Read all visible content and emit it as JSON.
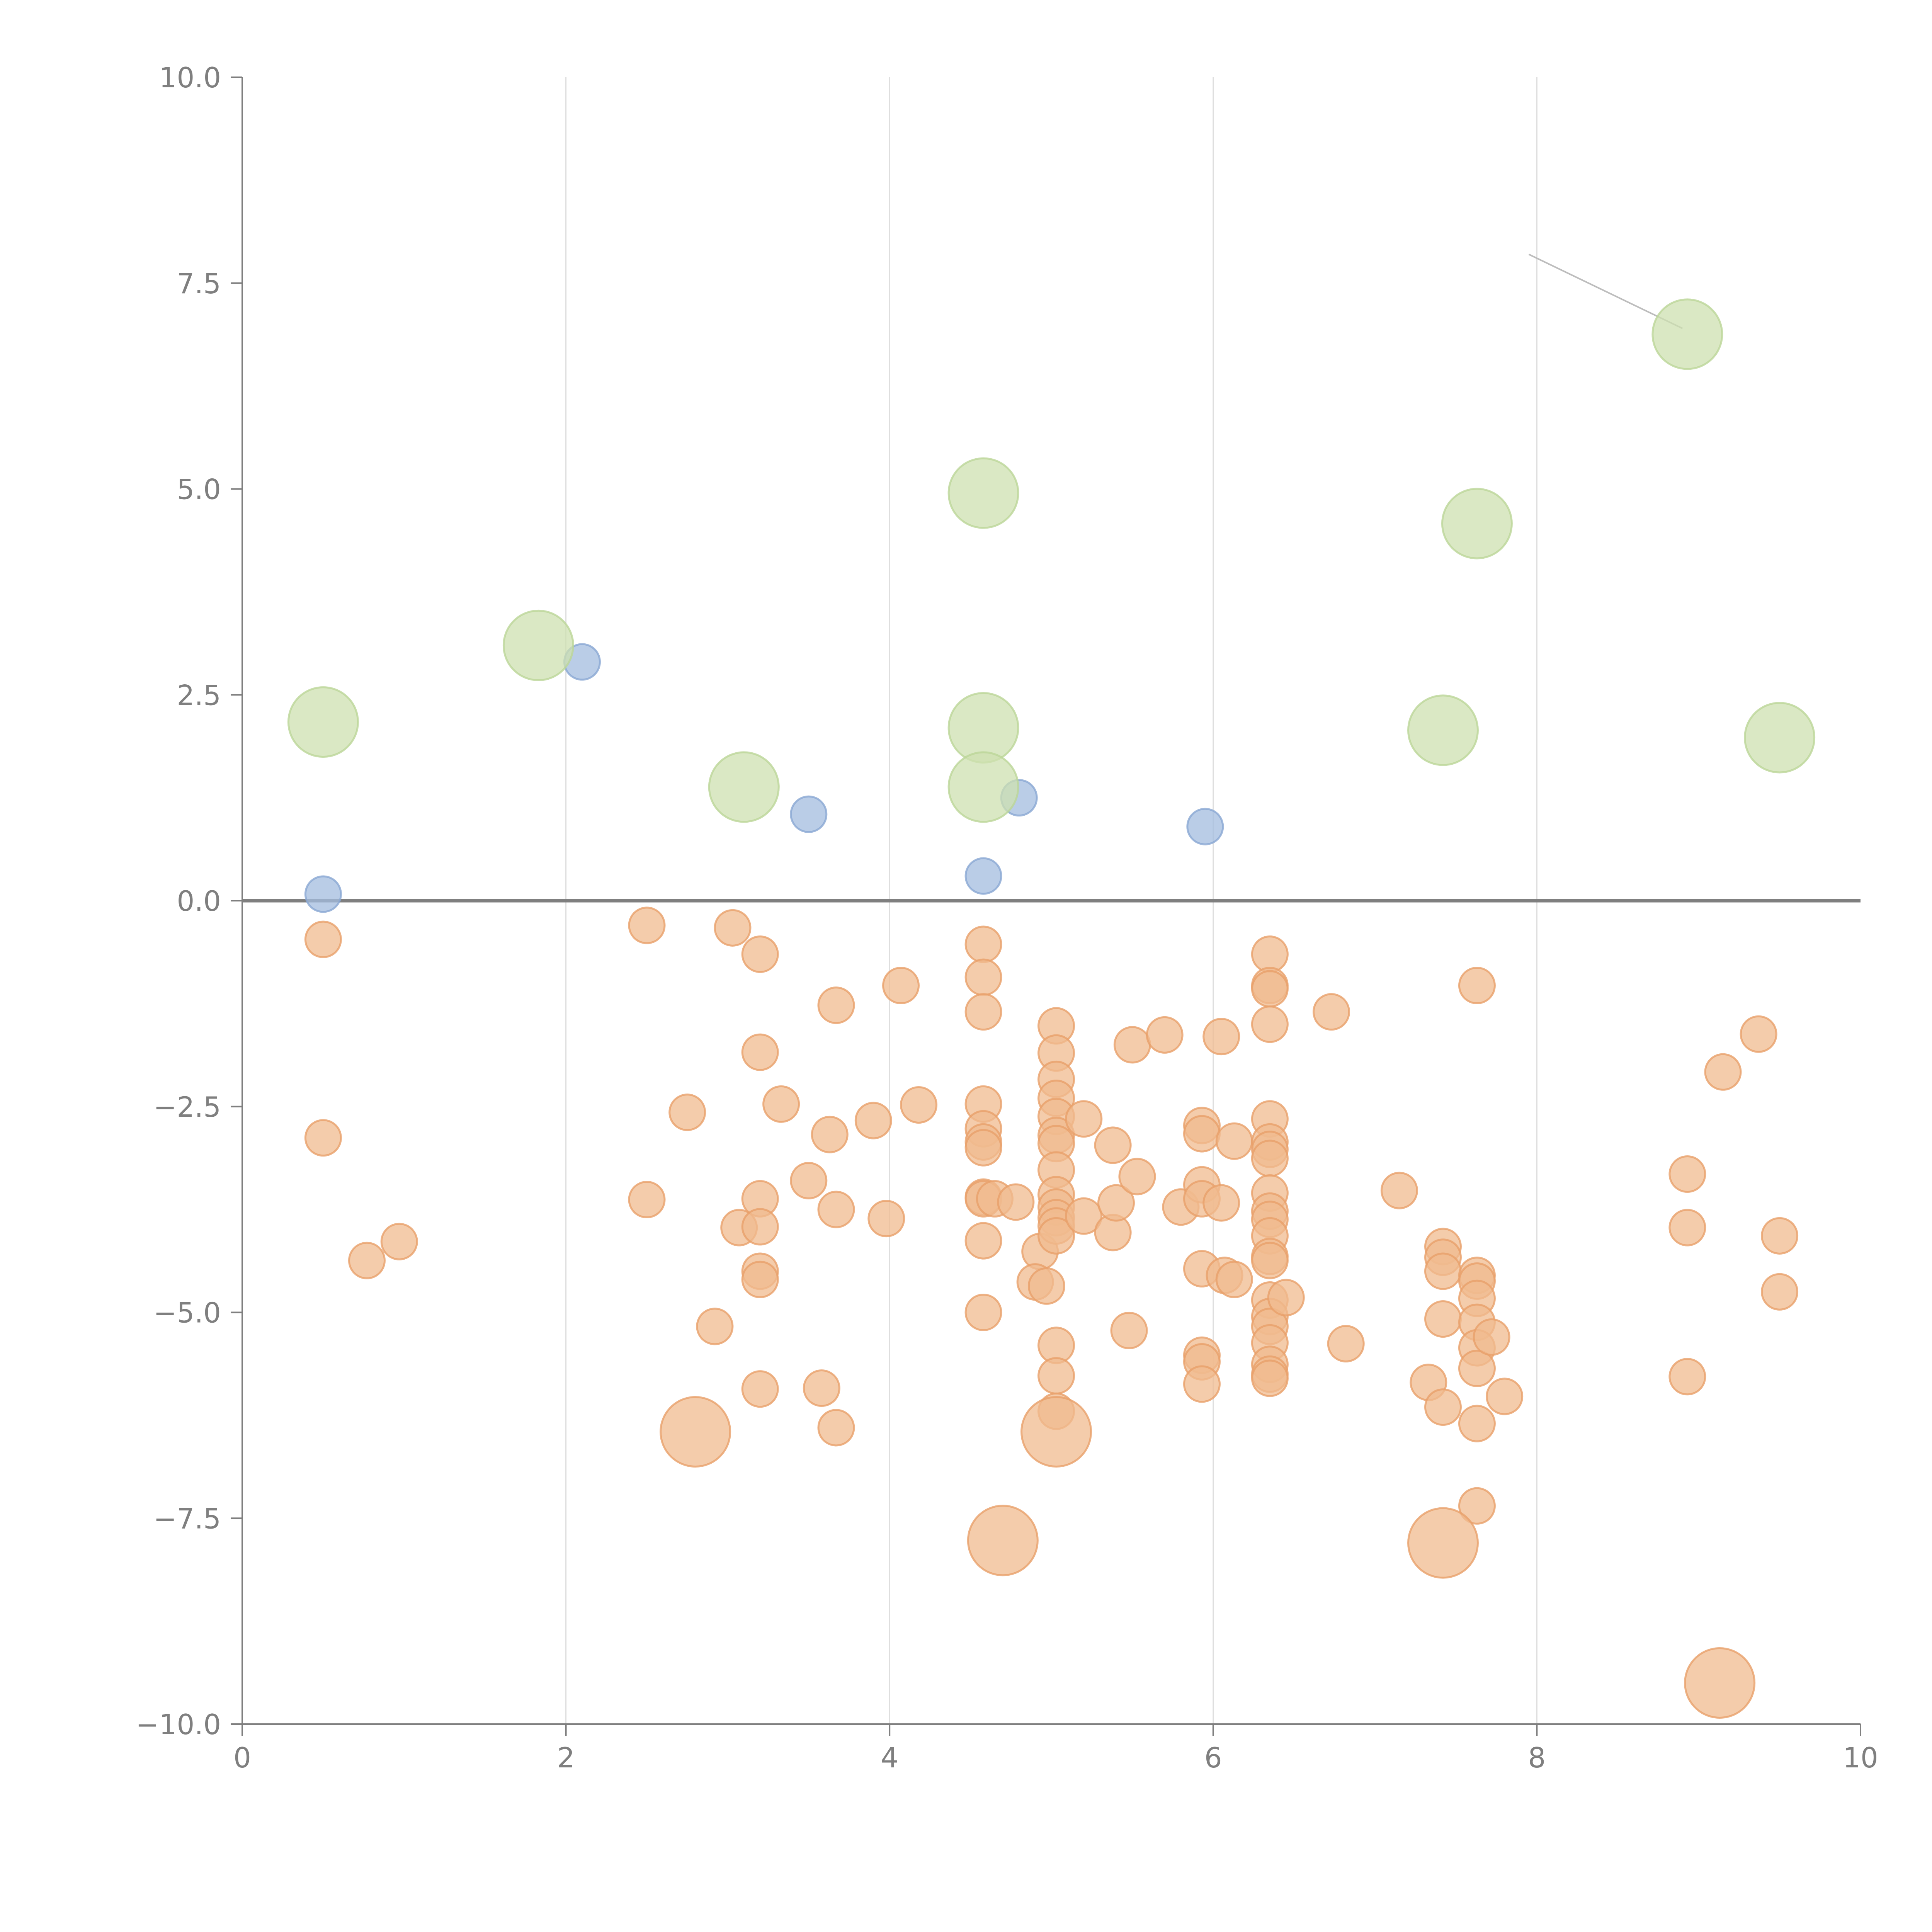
{
  "chart_data": {
    "type": "scatter",
    "title": "",
    "xlabel": "",
    "ylabel": "",
    "xlim": [
      0,
      10
    ],
    "ylim": [
      -10,
      10
    ],
    "x_ticks": [
      0,
      2,
      4,
      6,
      8,
      10
    ],
    "x_tick_labels": [
      "0",
      "2",
      "4",
      "6",
      "8",
      "10"
    ],
    "y_ticks": [
      10,
      7.5,
      5,
      2.5,
      0,
      -2.5,
      -5,
      -7.5,
      -10
    ],
    "y_tick_labels": [
      "10.0",
      "7.5",
      "5.0",
      "2.5",
      "0.0",
      "−2.5",
      "−5.0",
      "−7.5",
      "−10.0"
    ],
    "vertical_grid": true,
    "horizontal_grid": false,
    "reference_line_y": 0,
    "series": [
      {
        "name": "blue",
        "color": "#a3bcdf",
        "stroke": "#8aa8d3",
        "size": "small",
        "points": [
          [
            0.5,
            0.08
          ],
          [
            2.1,
            2.9
          ],
          [
            3.5,
            1.05
          ],
          [
            4.58,
            0.3
          ],
          [
            4.8,
            1.25
          ],
          [
            5.95,
            0.9
          ]
        ]
      },
      {
        "name": "green",
        "color": "#cde0b0",
        "stroke": "#bcd699",
        "size": "large",
        "points": [
          [
            0.5,
            2.17
          ],
          [
            1.83,
            3.1
          ],
          [
            3.1,
            1.38
          ],
          [
            4.58,
            4.95
          ],
          [
            4.58,
            2.1
          ],
          [
            4.58,
            1.38
          ],
          [
            7.42,
            2.07
          ],
          [
            7.63,
            4.58
          ],
          [
            8.93,
            6.88
          ],
          [
            9.5,
            1.98
          ]
        ]
      },
      {
        "name": "orange",
        "color": "#f0bb8f",
        "stroke": "#e8a06a",
        "size": "small",
        "points": [
          [
            0.5,
            -0.47
          ],
          [
            0.5,
            -2.88
          ],
          [
            0.77,
            -4.37
          ],
          [
            0.97,
            -4.14
          ],
          [
            2.5,
            -0.3
          ],
          [
            2.5,
            -3.63
          ],
          [
            2.75,
            -2.57
          ],
          [
            2.92,
            -5.17
          ],
          [
            3.03,
            -0.33
          ],
          [
            3.07,
            -3.97
          ],
          [
            3.2,
            -0.65
          ],
          [
            3.2,
            -1.84
          ],
          [
            3.2,
            -3.62
          ],
          [
            3.2,
            -3.96
          ],
          [
            3.2,
            -4.5
          ],
          [
            3.2,
            -4.6
          ],
          [
            3.2,
            -5.93
          ],
          [
            3.33,
            -2.47
          ],
          [
            3.5,
            -3.4
          ],
          [
            3.58,
            -5.92
          ],
          [
            3.67,
            -1.27
          ],
          [
            3.63,
            -2.84
          ],
          [
            3.67,
            -3.75
          ],
          [
            3.67,
            -6.4
          ],
          [
            3.9,
            -2.67
          ],
          [
            3.98,
            -3.86
          ],
          [
            4.07,
            -1.03
          ],
          [
            4.18,
            -2.48
          ],
          [
            4.58,
            -0.53
          ],
          [
            4.58,
            -0.93
          ],
          [
            4.58,
            -1.35
          ],
          [
            4.58,
            -2.47
          ],
          [
            4.58,
            -2.77
          ],
          [
            4.58,
            -2.93
          ],
          [
            4.58,
            -3.0
          ],
          [
            4.58,
            -3.6
          ],
          [
            4.58,
            -3.62
          ],
          [
            4.58,
            -4.13
          ],
          [
            4.58,
            -5.0
          ],
          [
            4.65,
            -3.62
          ],
          [
            4.78,
            -3.66
          ],
          [
            4.93,
            -4.26
          ],
          [
            4.9,
            -4.63
          ],
          [
            4.97,
            -4.68
          ],
          [
            5.03,
            -1.52
          ],
          [
            5.03,
            -1.85
          ],
          [
            5.03,
            -2.17
          ],
          [
            5.03,
            -2.4
          ],
          [
            5.03,
            -2.62
          ],
          [
            5.03,
            -2.85
          ],
          [
            5.03,
            -2.95
          ],
          [
            5.03,
            -3.27
          ],
          [
            5.03,
            -3.57
          ],
          [
            5.03,
            -3.72
          ],
          [
            5.03,
            -3.85
          ],
          [
            5.03,
            -3.95
          ],
          [
            5.03,
            -4.07
          ],
          [
            5.03,
            -5.4
          ],
          [
            5.03,
            -5.77
          ],
          [
            5.03,
            -6.2
          ],
          [
            5.2,
            -2.65
          ],
          [
            5.2,
            -3.83
          ],
          [
            5.38,
            -2.97
          ],
          [
            5.38,
            -4.03
          ],
          [
            5.4,
            -3.67
          ],
          [
            5.48,
            -5.22
          ],
          [
            5.5,
            -1.75
          ],
          [
            5.53,
            -3.35
          ],
          [
            5.7,
            -1.63
          ],
          [
            5.8,
            -3.72
          ],
          [
            5.93,
            -2.73
          ],
          [
            5.93,
            -2.83
          ],
          [
            5.93,
            -3.45
          ],
          [
            5.93,
            -3.62
          ],
          [
            5.93,
            -4.47
          ],
          [
            5.93,
            -5.52
          ],
          [
            5.93,
            -5.6
          ],
          [
            5.93,
            -5.87
          ],
          [
            6.05,
            -1.65
          ],
          [
            6.05,
            -3.67
          ],
          [
            6.07,
            -4.55
          ],
          [
            6.13,
            -4.6
          ],
          [
            6.13,
            -2.92
          ],
          [
            6.35,
            -0.65
          ],
          [
            6.35,
            -1.03
          ],
          [
            6.35,
            -1.07
          ],
          [
            6.35,
            -1.5
          ],
          [
            6.35,
            -2.65
          ],
          [
            6.35,
            -2.93
          ],
          [
            6.35,
            -3.02
          ],
          [
            6.35,
            -3.13
          ],
          [
            6.35,
            -3.55
          ],
          [
            6.35,
            -3.77
          ],
          [
            6.35,
            -3.87
          ],
          [
            6.35,
            -4.07
          ],
          [
            6.35,
            -4.32
          ],
          [
            6.35,
            -4.37
          ],
          [
            6.35,
            -4.85
          ],
          [
            6.35,
            -5.05
          ],
          [
            6.35,
            -5.17
          ],
          [
            6.35,
            -5.37
          ],
          [
            6.35,
            -5.63
          ],
          [
            6.35,
            -5.75
          ],
          [
            6.35,
            -5.8
          ],
          [
            6.45,
            -4.82
          ],
          [
            6.73,
            -1.35
          ],
          [
            6.82,
            -5.38
          ],
          [
            7.15,
            -3.52
          ],
          [
            7.33,
            -5.85
          ],
          [
            7.42,
            -4.2
          ],
          [
            7.42,
            -4.33
          ],
          [
            7.42,
            -4.5
          ],
          [
            7.42,
            -5.08
          ],
          [
            7.42,
            -6.15
          ],
          [
            7.63,
            -1.03
          ],
          [
            7.63,
            -4.55
          ],
          [
            7.63,
            -4.62
          ],
          [
            7.63,
            -4.83
          ],
          [
            7.63,
            -5.12
          ],
          [
            7.63,
            -5.43
          ],
          [
            7.63,
            -5.68
          ],
          [
            7.63,
            -6.35
          ],
          [
            7.63,
            -7.35
          ],
          [
            7.72,
            -5.3
          ],
          [
            7.8,
            -6.02
          ],
          [
            8.93,
            -3.32
          ],
          [
            8.93,
            -3.97
          ],
          [
            8.93,
            -5.78
          ],
          [
            9.15,
            -2.08
          ],
          [
            9.37,
            -1.62
          ],
          [
            9.5,
            -4.07
          ],
          [
            9.5,
            -4.75
          ]
        ]
      },
      {
        "name": "orange-large",
        "color": "#f0bb8f",
        "stroke": "#e8a06a",
        "size": "large",
        "points": [
          [
            2.8,
            -6.45
          ],
          [
            4.7,
            -7.77
          ],
          [
            5.03,
            -6.45
          ],
          [
            7.42,
            -7.8
          ],
          [
            9.13,
            -9.5
          ]
        ]
      }
    ],
    "annotation_leaders": [
      {
        "from": [
          7.95,
          7.85
        ],
        "to": [
          8.9,
          6.95
        ],
        "color": "#bdbdbd"
      },
      {
        "from": [
          7.8,
          4.75
        ],
        "to": [
          7.65,
          4.62
        ],
        "color": "#ffffff"
      },
      {
        "from": [
          4.77,
          2.37
        ],
        "to": [
          4.6,
          2.13
        ],
        "color": "#ffffff"
      },
      {
        "from": [
          4.6,
          1.38
        ],
        "to": [
          4.73,
          1.22
        ],
        "color": "#ffffff"
      },
      {
        "from": [
          7.43,
          1.62
        ],
        "to": [
          7.42,
          1.97
        ],
        "color": "#ffffff"
      },
      {
        "from": [
          9.42,
          2.2
        ],
        "to": [
          9.5,
          2.02
        ],
        "color": "#ffffff"
      },
      {
        "from": [
          4.9,
          -8.07
        ],
        "to": [
          4.75,
          -7.85
        ],
        "color": "#ffffff"
      },
      {
        "from": [
          7.55,
          -8.07
        ],
        "to": [
          7.45,
          -7.85
        ],
        "color": "#ffffff"
      },
      {
        "from": [
          9.13,
          -9.42
        ],
        "to": [
          9.22,
          -9.17
        ],
        "color": "#ffffff"
      }
    ]
  }
}
